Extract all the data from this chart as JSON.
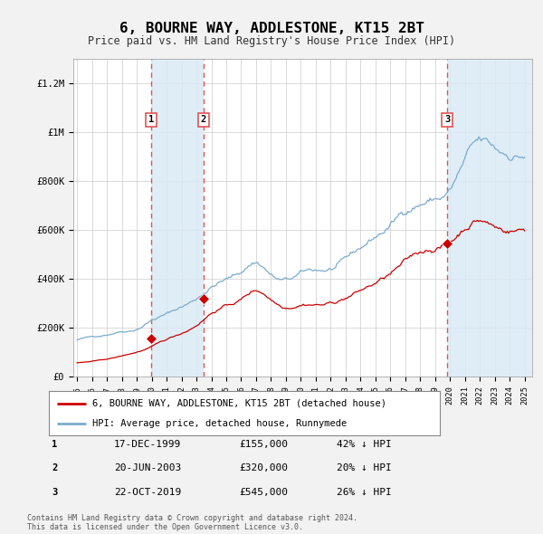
{
  "title": "6, BOURNE WAY, ADDLESTONE, KT15 2BT",
  "subtitle": "Price paid vs. HM Land Registry's House Price Index (HPI)",
  "ylabel_ticks": [
    "£0",
    "£200K",
    "£400K",
    "£600K",
    "£800K",
    "£1M",
    "£1.2M"
  ],
  "ytick_values": [
    0,
    200000,
    400000,
    600000,
    800000,
    1000000,
    1200000
  ],
  "ylim": [
    0,
    1300000
  ],
  "xlim_start": 1994.75,
  "xlim_end": 2025.5,
  "sale_dates": [
    1999.96,
    2003.47,
    2019.81
  ],
  "sale_prices": [
    155000,
    320000,
    545000
  ],
  "sale_labels": [
    "1",
    "2",
    "3"
  ],
  "sale_info": [
    {
      "label": "1",
      "date": "17-DEC-1999",
      "price": "£155,000",
      "hpi": "42% ↓ HPI"
    },
    {
      "label": "2",
      "date": "20-JUN-2003",
      "price": "£320,000",
      "hpi": "20% ↓ HPI"
    },
    {
      "label": "3",
      "date": "22-OCT-2019",
      "price": "£545,000",
      "hpi": "26% ↓ HPI"
    }
  ],
  "red_line_color": "#cc0000",
  "blue_line_color": "#7aacce",
  "shade_color": "#daeaf5",
  "vline_color": "#e05555",
  "legend_label_red": "6, BOURNE WAY, ADDLESTONE, KT15 2BT (detached house)",
  "legend_label_blue": "HPI: Average price, detached house, Runnymede",
  "footer": "Contains HM Land Registry data © Crown copyright and database right 2024.\nThis data is licensed under the Open Government Licence v3.0.",
  "background_color": "#f2f2f2",
  "plot_bg_color": "#ffffff",
  "hpi_anchor_years": [
    1995.0,
    1996.0,
    1997.0,
    1998.0,
    1999.0,
    2000.0,
    2001.0,
    2002.0,
    2003.0,
    2004.0,
    2005.0,
    2006.0,
    2007.0,
    2008.0,
    2009.0,
    2010.0,
    2011.0,
    2012.0,
    2013.0,
    2014.0,
    2015.0,
    2016.0,
    2017.0,
    2018.0,
    2019.0,
    2020.0,
    2021.0,
    2022.0,
    2023.0,
    2024.0,
    2025.0
  ],
  "hpi_anchor_values": [
    145000,
    155000,
    168000,
    185000,
    200000,
    240000,
    265000,
    295000,
    330000,
    385000,
    415000,
    445000,
    490000,
    440000,
    410000,
    430000,
    440000,
    445000,
    470000,
    510000,
    555000,
    600000,
    660000,
    700000,
    720000,
    755000,
    860000,
    910000,
    870000,
    855000,
    860000
  ],
  "red_anchor_years": [
    1995.0,
    1996.0,
    1997.0,
    1998.0,
    1999.0,
    2000.0,
    2001.0,
    2002.0,
    2003.0,
    2004.0,
    2005.0,
    2006.0,
    2007.0,
    2008.0,
    2009.0,
    2010.0,
    2011.0,
    2012.0,
    2013.0,
    2014.0,
    2015.0,
    2016.0,
    2017.0,
    2018.0,
    2019.0,
    2020.0,
    2021.0,
    2022.0,
    2023.0,
    2024.0,
    2025.0
  ],
  "red_anchor_values": [
    55000,
    60000,
    68000,
    80000,
    95000,
    115000,
    140000,
    165000,
    200000,
    250000,
    280000,
    305000,
    340000,
    310000,
    285000,
    305000,
    310000,
    315000,
    340000,
    370000,
    400000,
    435000,
    475000,
    510000,
    535000,
    560000,
    625000,
    665000,
    635000,
    625000,
    630000
  ]
}
